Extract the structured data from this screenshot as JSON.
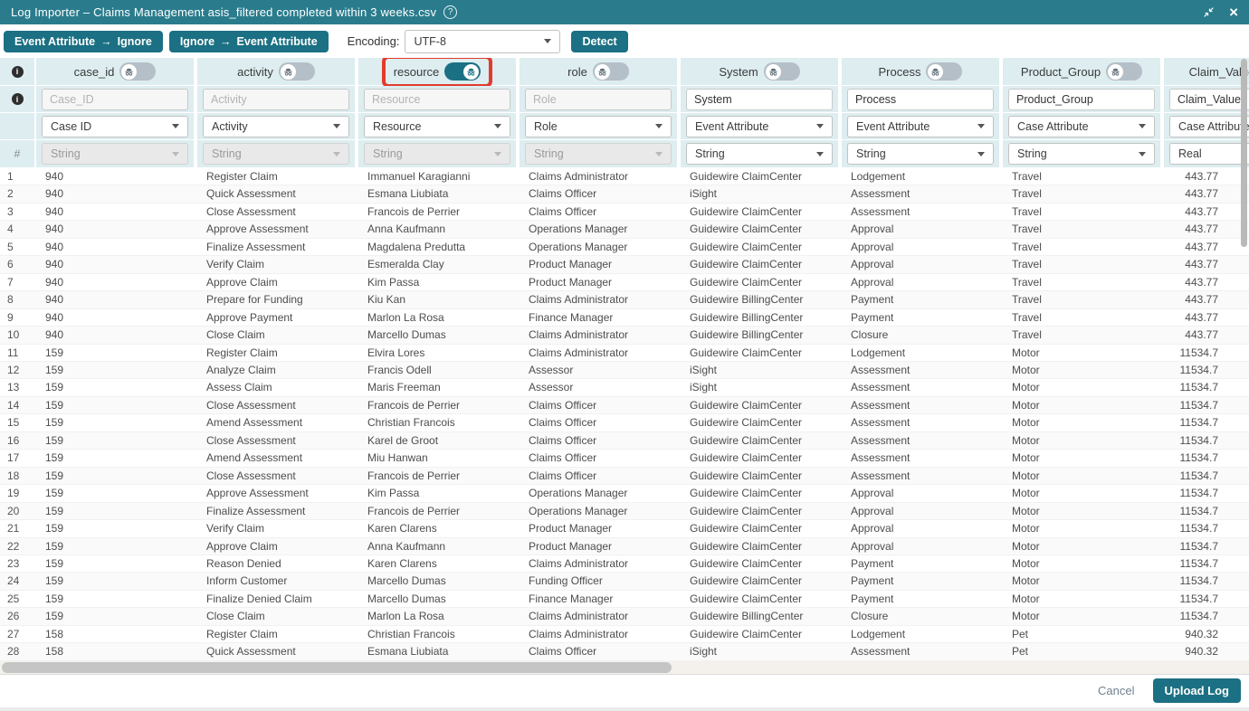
{
  "colors": {
    "titlebar_teal": "#2a7c8d",
    "button_teal": "#1c7083",
    "header_cyan": "#ddedf0",
    "highlight_red": "#e23b2c"
  },
  "window": {
    "title": "Log Importer – Claims Management asis_filtered completed within 3 weeks.csv",
    "help_glyph": "?",
    "close_glyph": "×"
  },
  "toolbar": {
    "arrow_glyph": "→",
    "btn_event_to_ignore": {
      "left": "Event Attribute",
      "right": "Ignore"
    },
    "btn_ignore_to_event": {
      "left": "Ignore",
      "right": "Event Attribute"
    },
    "encoding_label": "Encoding:",
    "encoding_value": "UTF-8",
    "detect_label": "Detect"
  },
  "grid": {
    "gutter": {
      "info_glyph": "i",
      "hash_glyph": "#"
    },
    "columns": [
      {
        "header": "case_id",
        "input": "Case_ID",
        "input_ghost": true,
        "mapping": "Case ID",
        "dtype": "String",
        "dtype_enabled": false,
        "anonymize": false,
        "highlight": false
      },
      {
        "header": "activity",
        "input": "Activity",
        "input_ghost": true,
        "mapping": "Activity",
        "dtype": "String",
        "dtype_enabled": false,
        "anonymize": false,
        "highlight": false
      },
      {
        "header": "resource",
        "input": "Resource",
        "input_ghost": true,
        "mapping": "Resource",
        "dtype": "String",
        "dtype_enabled": false,
        "anonymize": true,
        "highlight": true
      },
      {
        "header": "role",
        "input": "Role",
        "input_ghost": true,
        "mapping": "Role",
        "dtype": "String",
        "dtype_enabled": false,
        "anonymize": false,
        "highlight": false
      },
      {
        "header": "System",
        "input": "System",
        "input_ghost": false,
        "mapping": "Event Attribute",
        "dtype": "String",
        "dtype_enabled": true,
        "anonymize": false,
        "highlight": false
      },
      {
        "header": "Process",
        "input": "Process",
        "input_ghost": false,
        "mapping": "Event Attribute",
        "dtype": "String",
        "dtype_enabled": true,
        "anonymize": false,
        "highlight": false
      },
      {
        "header": "Product_Group",
        "input": "Product_Group",
        "input_ghost": false,
        "mapping": "Case Attribute",
        "dtype": "String",
        "dtype_enabled": true,
        "anonymize": false,
        "highlight": false
      },
      {
        "header": "Claim_Value",
        "input": "Claim_Value",
        "input_ghost": false,
        "mapping": "Case Attribute",
        "dtype": "Real",
        "dtype_enabled": true,
        "anonymize": false,
        "highlight": false
      }
    ],
    "rows": [
      [
        "940",
        "Register Claim",
        "Immanuel Karagianni",
        "Claims Administrator",
        "Guidewire ClaimCenter",
        "Lodgement",
        "Travel",
        "443.77"
      ],
      [
        "940",
        "Quick Assessment",
        "Esmana Liubiata",
        "Claims Officer",
        "iSight",
        "Assessment",
        "Travel",
        "443.77"
      ],
      [
        "940",
        "Close Assessment",
        "Francois de Perrier",
        "Claims Officer",
        "Guidewire ClaimCenter",
        "Assessment",
        "Travel",
        "443.77"
      ],
      [
        "940",
        "Approve Assessment",
        "Anna Kaufmann",
        "Operations Manager",
        "Guidewire ClaimCenter",
        "Approval",
        "Travel",
        "443.77"
      ],
      [
        "940",
        "Finalize Assessment",
        "Magdalena Predutta",
        "Operations Manager",
        "Guidewire ClaimCenter",
        "Approval",
        "Travel",
        "443.77"
      ],
      [
        "940",
        "Verify Claim",
        "Esmeralda Clay",
        "Product Manager",
        "Guidewire ClaimCenter",
        "Approval",
        "Travel",
        "443.77"
      ],
      [
        "940",
        "Approve Claim",
        "Kim Passa",
        "Product Manager",
        "Guidewire ClaimCenter",
        "Approval",
        "Travel",
        "443.77"
      ],
      [
        "940",
        "Prepare for Funding",
        "Kiu Kan",
        "Claims Administrator",
        "Guidewire BillingCenter",
        "Payment",
        "Travel",
        "443.77"
      ],
      [
        "940",
        "Approve Payment",
        "Marlon La Rosa",
        "Finance Manager",
        "Guidewire BillingCenter",
        "Payment",
        "Travel",
        "443.77"
      ],
      [
        "940",
        "Close Claim",
        "Marcello Dumas",
        "Claims Administrator",
        "Guidewire BillingCenter",
        "Closure",
        "Travel",
        "443.77"
      ],
      [
        "159",
        "Register Claim",
        "Elvira Lores",
        "Claims Administrator",
        "Guidewire ClaimCenter",
        "Lodgement",
        "Motor",
        "11534.7"
      ],
      [
        "159",
        "Analyze Claim",
        "Francis Odell",
        "Assessor",
        "iSight",
        "Assessment",
        "Motor",
        "11534.7"
      ],
      [
        "159",
        "Assess Claim",
        "Maris Freeman",
        "Assessor",
        "iSight",
        "Assessment",
        "Motor",
        "11534.7"
      ],
      [
        "159",
        "Close Assessment",
        "Francois de Perrier",
        "Claims Officer",
        "Guidewire ClaimCenter",
        "Assessment",
        "Motor",
        "11534.7"
      ],
      [
        "159",
        "Amend Assessment",
        "Christian Francois",
        "Claims Officer",
        "Guidewire ClaimCenter",
        "Assessment",
        "Motor",
        "11534.7"
      ],
      [
        "159",
        "Close Assessment",
        "Karel de Groot",
        "Claims Officer",
        "Guidewire ClaimCenter",
        "Assessment",
        "Motor",
        "11534.7"
      ],
      [
        "159",
        "Amend Assessment",
        "Miu Hanwan",
        "Claims Officer",
        "Guidewire ClaimCenter",
        "Assessment",
        "Motor",
        "11534.7"
      ],
      [
        "159",
        "Close Assessment",
        "Francois de Perrier",
        "Claims Officer",
        "Guidewire ClaimCenter",
        "Assessment",
        "Motor",
        "11534.7"
      ],
      [
        "159",
        "Approve Assessment",
        "Kim Passa",
        "Operations Manager",
        "Guidewire ClaimCenter",
        "Approval",
        "Motor",
        "11534.7"
      ],
      [
        "159",
        "Finalize Assessment",
        "Francois de Perrier",
        "Operations Manager",
        "Guidewire ClaimCenter",
        "Approval",
        "Motor",
        "11534.7"
      ],
      [
        "159",
        "Verify Claim",
        "Karen Clarens",
        "Product Manager",
        "Guidewire ClaimCenter",
        "Approval",
        "Motor",
        "11534.7"
      ],
      [
        "159",
        "Approve Claim",
        "Anna Kaufmann",
        "Product Manager",
        "Guidewire ClaimCenter",
        "Approval",
        "Motor",
        "11534.7"
      ],
      [
        "159",
        "Reason Denied",
        "Karen Clarens",
        "Claims Administrator",
        "Guidewire ClaimCenter",
        "Payment",
        "Motor",
        "11534.7"
      ],
      [
        "159",
        "Inform Customer",
        "Marcello Dumas",
        "Funding Officer",
        "Guidewire ClaimCenter",
        "Payment",
        "Motor",
        "11534.7"
      ],
      [
        "159",
        "Finalize Denied Claim",
        "Marcello Dumas",
        "Finance Manager",
        "Guidewire ClaimCenter",
        "Payment",
        "Motor",
        "11534.7"
      ],
      [
        "159",
        "Close Claim",
        "Marlon La Rosa",
        "Claims Administrator",
        "Guidewire BillingCenter",
        "Closure",
        "Motor",
        "11534.7"
      ],
      [
        "158",
        "Register Claim",
        "Christian Francois",
        "Claims Administrator",
        "Guidewire ClaimCenter",
        "Lodgement",
        "Pet",
        "940.32"
      ],
      [
        "158",
        "Quick Assessment",
        "Esmana Liubiata",
        "Claims Officer",
        "iSight",
        "Assessment",
        "Pet",
        "940.32"
      ]
    ]
  },
  "footer": {
    "cancel_label": "Cancel",
    "upload_label": "Upload Log"
  }
}
